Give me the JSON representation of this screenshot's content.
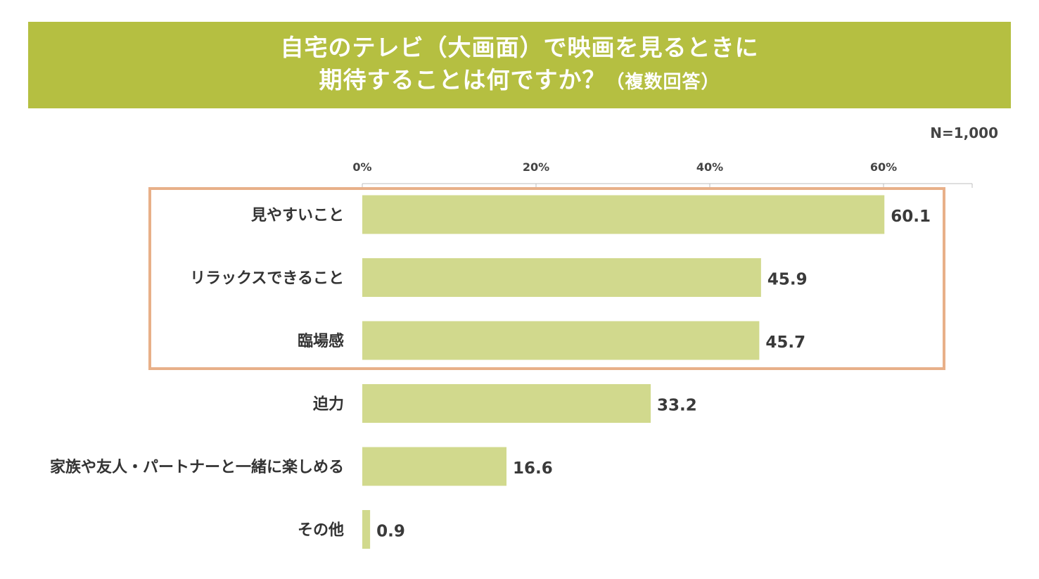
{
  "chart_data": {
    "type": "bar",
    "orientation": "horizontal",
    "title_line1": "自宅のテレビ（大画面）で映画を見るときに",
    "title_line2_main": "期待することは何ですか？",
    "title_line2_note": "（複数回答）",
    "sample_size": "N=1,000",
    "categories": [
      "見やすいこと",
      "リラックスできること",
      "臨場感",
      "迫力",
      "家族や友人・パートナーと一緒に楽しめる",
      "その他"
    ],
    "values": [
      60.1,
      45.9,
      45.7,
      33.2,
      16.6,
      0.9
    ],
    "value_labels": [
      "60.1",
      "45.9",
      "45.7",
      "33.2",
      "16.6",
      "0.9"
    ],
    "x_ticks": [
      0,
      20,
      40,
      60
    ],
    "x_tick_labels": [
      "0%",
      "20%",
      "40%",
      "60%"
    ],
    "xlim": [
      0,
      70
    ],
    "grid": false,
    "highlighted_categories": [
      "見やすいこと",
      "リラックスできること",
      "臨場感"
    ],
    "colors": {
      "banner": "#b5bf41",
      "bar": "#d1d98d",
      "highlight_box": "#e8b089",
      "axis": "#bfbfbf"
    }
  }
}
